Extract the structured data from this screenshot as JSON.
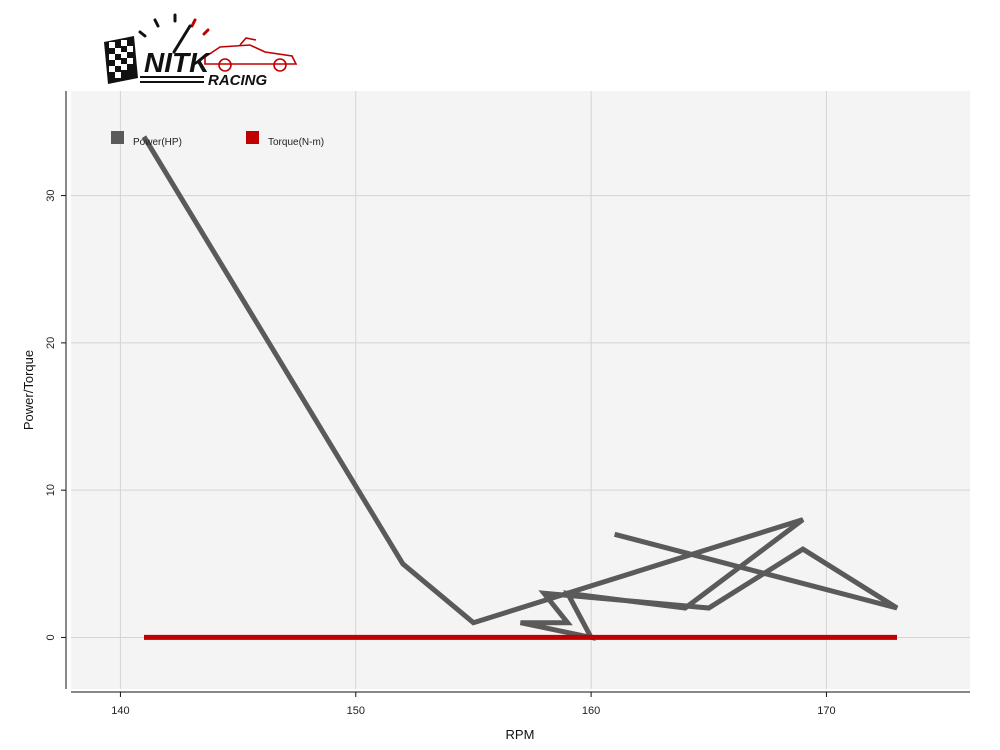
{
  "logo": {
    "line1": "NITK",
    "line2": "RACING"
  },
  "chart_data": {
    "type": "line",
    "xlabel": "RPM",
    "ylabel": "Power/Torque",
    "xlim": [
      137.9,
      176.1
    ],
    "ylim": [
      -3.5,
      37.1
    ],
    "xticks": [
      140,
      150,
      160,
      170
    ],
    "yticks": [
      0,
      10,
      20,
      30
    ],
    "grid": true,
    "legend_position": "top-left",
    "colors": {
      "plot_bg": "#f4f4f4",
      "grid": "#d4d4d4"
    },
    "series": [
      {
        "name": "Power(HP)",
        "color": "#5a5a5a",
        "x": [
          141,
          152,
          155,
          160,
          169,
          164,
          159,
          160,
          157,
          159,
          158,
          165,
          169,
          173,
          161
        ],
        "y": [
          34,
          5,
          1,
          3.5,
          8,
          2,
          3,
          0,
          1,
          1,
          3,
          2,
          6,
          2,
          7
        ]
      },
      {
        "name": "Torque(N-m)",
        "color": "#c00000",
        "x": [
          141,
          152,
          155,
          160,
          173
        ],
        "y": [
          0,
          0,
          0,
          0,
          0
        ]
      }
    ]
  }
}
